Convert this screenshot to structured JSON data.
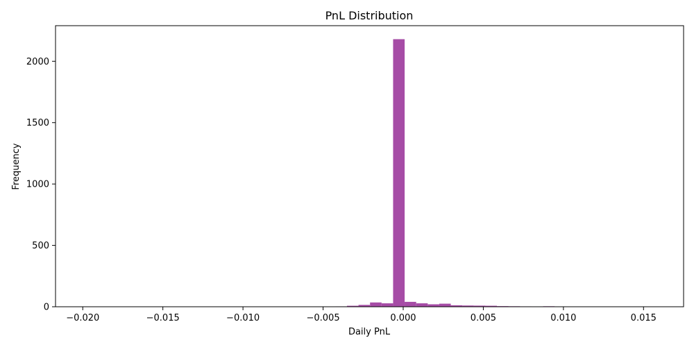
{
  "chart_data": {
    "type": "bar",
    "title": "PnL Distribution",
    "xlabel": "Daily PnL",
    "ylabel": "Frequency",
    "xlim": [
      -0.0217,
      0.0175
    ],
    "ylim": [
      0,
      2290
    ],
    "bar_color": "#a64ca6",
    "bin_width": 0.00072,
    "xticks": [
      {
        "value": -0.02,
        "label": "−0.020"
      },
      {
        "value": -0.015,
        "label": "−0.015"
      },
      {
        "value": -0.01,
        "label": "−0.010"
      },
      {
        "value": -0.005,
        "label": "−0.005"
      },
      {
        "value": 0.0,
        "label": "0.000"
      },
      {
        "value": 0.005,
        "label": "0.005"
      },
      {
        "value": 0.01,
        "label": "0.010"
      },
      {
        "value": 0.015,
        "label": "0.015"
      }
    ],
    "yticks": [
      {
        "value": 0,
        "label": "0"
      },
      {
        "value": 500,
        "label": "500"
      },
      {
        "value": 1000,
        "label": "1000"
      },
      {
        "value": 1500,
        "label": "1500"
      },
      {
        "value": 2000,
        "label": "2000"
      }
    ],
    "bins": [
      {
        "x": -0.00675,
        "count": 2
      },
      {
        "x": -0.00459,
        "count": 2
      },
      {
        "x": -0.00387,
        "count": 3
      },
      {
        "x": -0.00315,
        "count": 8
      },
      {
        "x": -0.00243,
        "count": 15
      },
      {
        "x": -0.00171,
        "count": 35
      },
      {
        "x": -0.00099,
        "count": 28
      },
      {
        "x": -0.00027,
        "count": 2180
      },
      {
        "x": 0.00045,
        "count": 40
      },
      {
        "x": 0.00117,
        "count": 28
      },
      {
        "x": 0.00189,
        "count": 20
      },
      {
        "x": 0.00261,
        "count": 25
      },
      {
        "x": 0.00333,
        "count": 12
      },
      {
        "x": 0.00405,
        "count": 10
      },
      {
        "x": 0.00477,
        "count": 9
      },
      {
        "x": 0.00549,
        "count": 8
      },
      {
        "x": 0.00621,
        "count": 5
      },
      {
        "x": 0.00693,
        "count": 4
      },
      {
        "x": 0.00765,
        "count": 3
      },
      {
        "x": 0.00909,
        "count": 4
      }
    ]
  }
}
